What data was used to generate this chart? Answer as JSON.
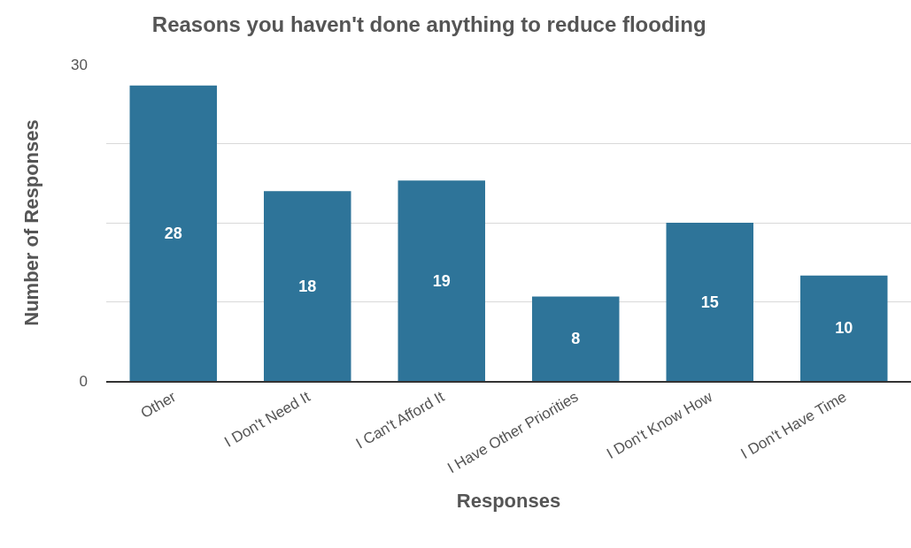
{
  "chart_data": {
    "type": "bar",
    "title": "Reasons you haven't done anything to reduce flooding",
    "xlabel": "Responses",
    "ylabel": "Number of Responses",
    "categories": [
      "Other",
      "I Don't Need It",
      "I Can't Afford It",
      "I Have Other Priorities",
      "I Don't Know How",
      "I Don't Have Time"
    ],
    "values": [
      28,
      18,
      19,
      8,
      15,
      10
    ],
    "color": "#2e7499",
    "ylim": [
      0,
      30
    ],
    "yticks": [
      0,
      {
        "value": 7.5,
        "label": null
      },
      {
        "value": 15,
        "label": null
      },
      {
        "value": 22.5,
        "label": null
      },
      30
    ],
    "grid": "y",
    "data_labels": true
  }
}
